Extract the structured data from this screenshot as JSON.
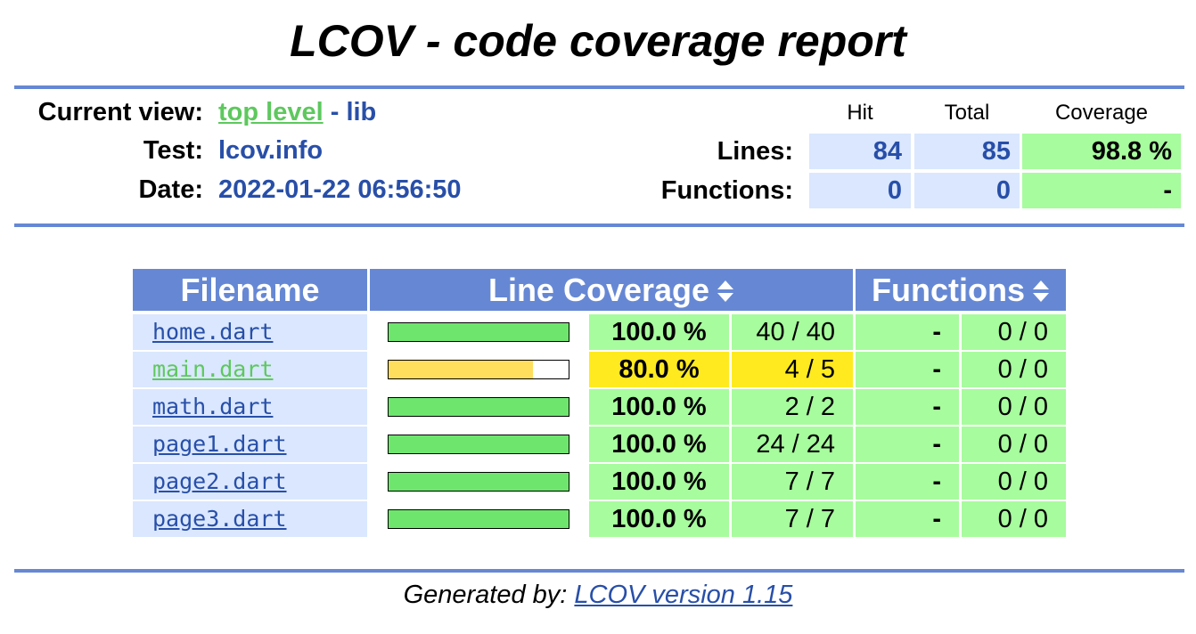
{
  "header": {
    "title": "LCOV - code coverage report",
    "current_view_label": "Current view:",
    "current_view_link": "top level",
    "current_view_sep": " - ",
    "current_view_dir": "lib",
    "test_label": "Test:",
    "test_value": "lcov.info",
    "date_label": "Date:",
    "date_value": "2022-01-22 06:56:50"
  },
  "summary": {
    "col_hit": "Hit",
    "col_total": "Total",
    "col_coverage": "Coverage",
    "lines_label": "Lines:",
    "lines_hit": "84",
    "lines_total": "85",
    "lines_coverage": "98.8 %",
    "functions_label": "Functions:",
    "functions_hit": "0",
    "functions_total": "0",
    "functions_coverage": "-"
  },
  "table": {
    "col_filename": "Filename",
    "col_line_coverage": "Line Coverage",
    "col_functions": "Functions",
    "rows": [
      {
        "file": "home.dart",
        "percent": "100.0 %",
        "lines": "40 / 40",
        "fn_percent": "-",
        "fn_ratio": "0 / 0",
        "coverage": 1.0,
        "level": "hi",
        "visited": false
      },
      {
        "file": "main.dart",
        "percent": "80.0 %",
        "lines": "4 / 5",
        "fn_percent": "-",
        "fn_ratio": "0 / 0",
        "coverage": 0.8,
        "level": "med",
        "visited": true
      },
      {
        "file": "math.dart",
        "percent": "100.0 %",
        "lines": "2 / 2",
        "fn_percent": "-",
        "fn_ratio": "0 / 0",
        "coverage": 1.0,
        "level": "hi",
        "visited": false
      },
      {
        "file": "page1.dart",
        "percent": "100.0 %",
        "lines": "24 / 24",
        "fn_percent": "-",
        "fn_ratio": "0 / 0",
        "coverage": 1.0,
        "level": "hi",
        "visited": false
      },
      {
        "file": "page2.dart",
        "percent": "100.0 %",
        "lines": "7 / 7",
        "fn_percent": "-",
        "fn_ratio": "0 / 0",
        "coverage": 1.0,
        "level": "hi",
        "visited": false
      },
      {
        "file": "page3.dart",
        "percent": "100.0 %",
        "lines": "7 / 7",
        "fn_percent": "-",
        "fn_ratio": "0 / 0",
        "coverage": 1.0,
        "level": "hi",
        "visited": false
      }
    ]
  },
  "footer": {
    "prefix": "Generated by: ",
    "link": "LCOV version 1.15"
  },
  "colors": {
    "accent_blue": "#6688d4",
    "link_blue": "#284fa8",
    "cell_blue": "#dae7fe",
    "coverage_high": "#a7fc9d",
    "coverage_medium": "#ffea20",
    "bar_high": "#6ee66e",
    "bar_medium": "#ffde5e"
  },
  "icons": {
    "sort": "sort-updown-icon"
  }
}
